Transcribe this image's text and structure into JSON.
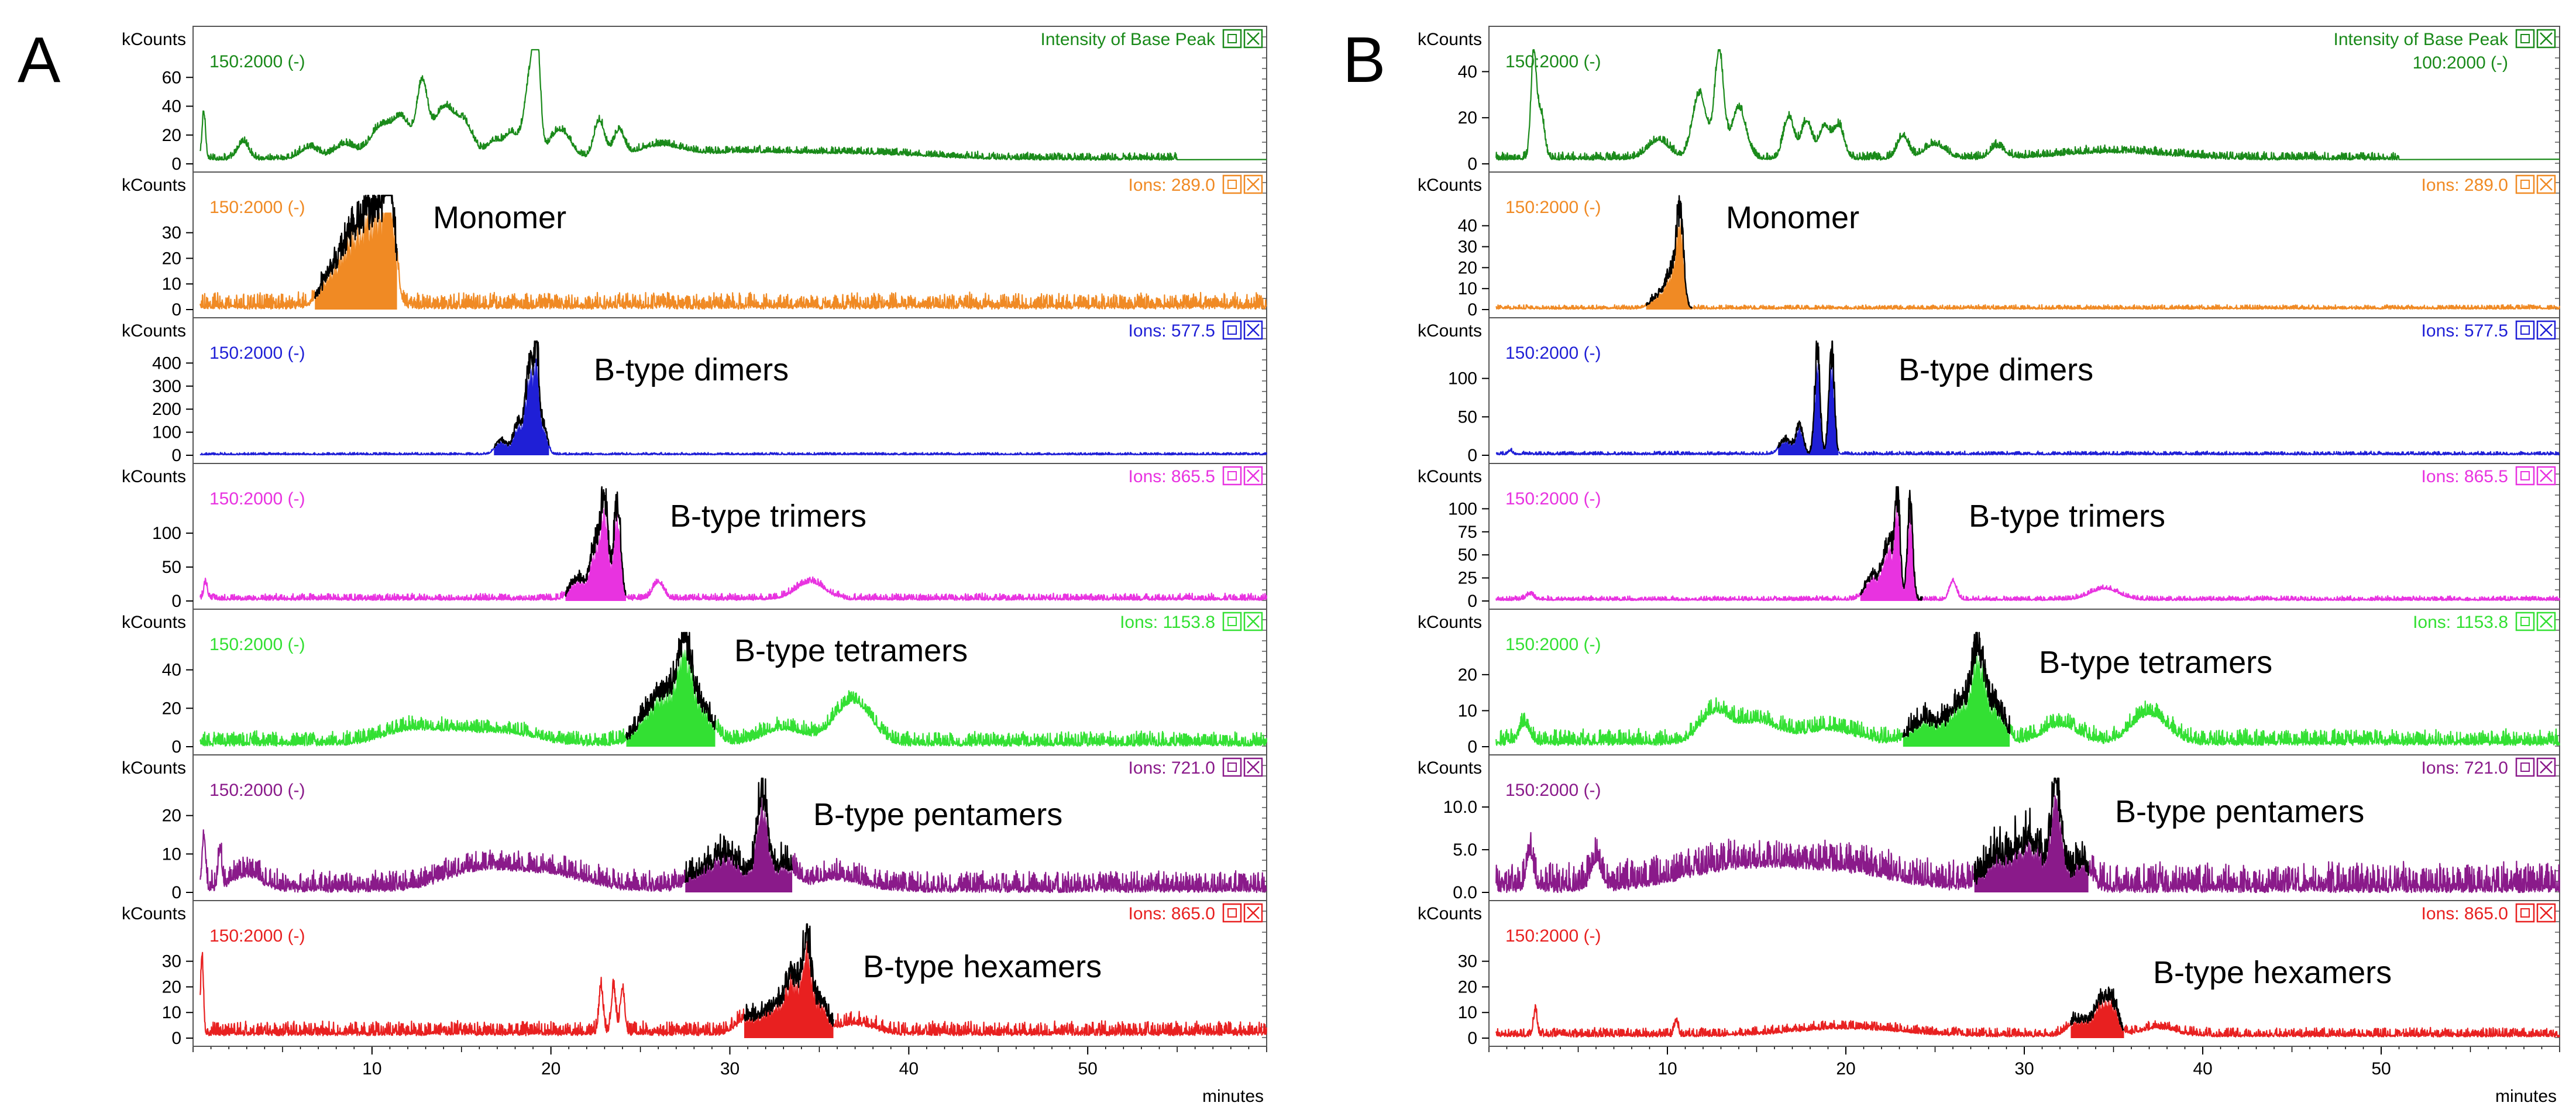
{
  "chart_data": [
    {
      "type": "line",
      "panel": "A",
      "x_unit_label": "minutes",
      "xlim": [
        0,
        60
      ],
      "x_ticks": [
        10,
        20,
        30,
        40,
        50
      ],
      "tracks": [
        {
          "y_unit": "kCounts",
          "range_label": "150:2000 (-)",
          "ion_label": "Intensity of Base Peak",
          "peak_name": "",
          "color": "#1a8a1a",
          "ylim": [
            0,
            80
          ],
          "y_ticks": [
            "0",
            "20",
            "40",
            "60"
          ],
          "peaks": [
            [
              0.6,
              32,
              0.1
            ],
            [
              2.8,
              12,
              0.3
            ],
            [
              6.5,
              8,
              0.5
            ],
            [
              8.5,
              10,
              0.6
            ],
            [
              10.5,
              22,
              0.6
            ],
            [
              11.7,
              26,
              0.5
            ],
            [
              12.8,
              48,
              0.3
            ],
            [
              14,
              35,
              0.6
            ],
            [
              15.2,
              22,
              0.5
            ],
            [
              16.8,
              12,
              0.4
            ],
            [
              17.8,
              18,
              0.4
            ],
            [
              18.8,
              52,
              0.3
            ],
            [
              19.2,
              72,
              0.2
            ],
            [
              20.5,
              20,
              0.6
            ],
            [
              22.7,
              26,
              0.3
            ],
            [
              23.8,
              18,
              0.3
            ],
            [
              26,
              8,
              1.2
            ],
            [
              30,
              4,
              3
            ],
            [
              37,
              4,
              4
            ]
          ],
          "baseline": 3,
          "noise": 2,
          "end": 55
        },
        {
          "y_unit": "kCounts",
          "range_label": "150:2000 (-)",
          "ion_label": "Ions: 289.0",
          "peak_name": "Monomer",
          "color": "#f08a24",
          "ylim": [
            0,
            45
          ],
          "y_ticks": [
            "0",
            "10",
            "20",
            "30"
          ],
          "peaks": [
            [
              7.5,
              6,
              0.5
            ],
            [
              8.6,
              14,
              0.8
            ],
            [
              9.5,
              22,
              0.8
            ],
            [
              10.3,
              20,
              0.5
            ],
            [
              11.0,
              40,
              0.3
            ]
          ],
          "baseline": 0.8,
          "noise": 2.5,
          "end": 60,
          "fill_range": [
            6.8,
            11.4
          ]
        },
        {
          "y_unit": "kCounts",
          "range_label": "150:2000 (-)",
          "ion_label": "Ions: 577.5",
          "peak_name": "B-type dimers",
          "color": "#1f1fd6",
          "ylim": [
            0,
            500
          ],
          "y_ticks": [
            "0",
            "100",
            "200",
            "300",
            "400"
          ],
          "peaks": [
            [
              17.2,
              60,
              0.3
            ],
            [
              18.2,
              140,
              0.3
            ],
            [
              18.8,
              360,
              0.2
            ],
            [
              19.2,
              420,
              0.15
            ],
            [
              19.6,
              120,
              0.2
            ]
          ],
          "baseline": 3,
          "noise": 4,
          "end": 60,
          "fill_range": [
            16.8,
            19.9
          ]
        },
        {
          "y_unit": "kCounts",
          "range_label": "150:2000 (-)",
          "ion_label": "Ions: 865.5",
          "peak_name": "B-type trimers",
          "color": "#e833e0",
          "ylim": [
            0,
            170
          ],
          "y_ticks": [
            "0",
            "50",
            "100"
          ],
          "peaks": [
            [
              0.7,
              25,
              0.1
            ],
            [
              21.5,
              30,
              0.4
            ],
            [
              22.5,
              80,
              0.3
            ],
            [
              23,
              140,
              0.2
            ],
            [
              23.7,
              140,
              0.2
            ],
            [
              26,
              25,
              0.3
            ],
            [
              34.5,
              25,
              0.8
            ]
          ],
          "baseline": 2,
          "noise": 4,
          "end": 60,
          "fill_range": [
            20.8,
            24.2
          ]
        },
        {
          "y_unit": "kCounts",
          "range_label": "150:2000 (-)",
          "ion_label": "Ions: 1153.8",
          "peak_name": "B-type tetramers",
          "color": "#33e033",
          "ylim": [
            0,
            60
          ],
          "y_ticks": [
            "0",
            "20",
            "40"
          ],
          "peaks": [
            [
              12,
              7,
              1.5
            ],
            [
              15,
              6,
              1.5
            ],
            [
              18,
              5,
              1.5
            ],
            [
              25.5,
              14,
              0.7
            ],
            [
              26.5,
              22,
              0.6
            ],
            [
              27.5,
              45,
              0.4
            ],
            [
              28.5,
              18,
              0.6
            ],
            [
              33,
              8,
              1.2
            ],
            [
              36.5,
              16,
              0.9
            ],
            [
              37.5,
              10,
              0.8
            ]
          ],
          "baseline": 1,
          "noise": 3,
          "end": 60,
          "fill_range": [
            24.2,
            29.2
          ]
        },
        {
          "y_unit": "kCounts",
          "range_label": "150:2000 (-)",
          "ion_label": "Ions: 721.0",
          "peak_name": "B-type pentamers",
          "color": "#8a1a8a",
          "ylim": [
            0,
            30
          ],
          "y_ticks": [
            "0",
            "10",
            "20"
          ],
          "peaks": [
            [
              0.6,
              14,
              0.1
            ],
            [
              1.5,
              10,
              0.1
            ],
            [
              3,
              4,
              0.8
            ],
            [
              16,
              5,
              2
            ],
            [
              20,
              4,
              2
            ],
            [
              28.5,
              4,
              0.8
            ],
            [
              30,
              8,
              0.8
            ],
            [
              31.8,
              24,
              0.3
            ],
            [
              33,
              6,
              0.6
            ],
            [
              36,
              3,
              1.5
            ]
          ],
          "baseline": 0.5,
          "noise": 2.2,
          "end": 60,
          "fill_range": [
            27.5,
            33.5
          ]
        },
        {
          "y_unit": "kCounts",
          "range_label": "150:2000 (-)",
          "ion_label": "Ions: 865.0",
          "peak_name": "B-type hexamers",
          "color": "#e82020",
          "ylim": [
            0,
            45
          ],
          "y_ticks": [
            "0",
            "10",
            "20",
            "30"
          ],
          "peaks": [
            [
              0.5,
              30,
              0.08
            ],
            [
              22.8,
              18,
              0.12
            ],
            [
              23.5,
              18,
              0.12
            ],
            [
              24,
              18,
              0.12
            ],
            [
              31,
              6,
              0.6
            ],
            [
              32.5,
              10,
              0.6
            ],
            [
              33.5,
              20,
              0.4
            ],
            [
              34.3,
              34,
              0.25
            ],
            [
              35,
              12,
              0.4
            ],
            [
              37,
              4,
              1
            ]
          ],
          "baseline": 1.5,
          "noise": 2.2,
          "end": 60,
          "fill_range": [
            30.8,
            35.8
          ]
        }
      ]
    },
    {
      "type": "line",
      "panel": "B",
      "x_unit_label": "minutes",
      "xlim": [
        0,
        60
      ],
      "x_ticks": [
        10,
        20,
        30,
        40,
        50
      ],
      "tracks": [
        {
          "y_unit": "kCounts",
          "range_label": "150:2000 (-)",
          "ion_label": "Intensity of Base Peak",
          "ion_label_2": "100:2000 (-)",
          "peak_name": "",
          "color": "#1a8a1a",
          "ylim": [
            0,
            50
          ],
          "y_ticks": [
            "0",
            "20",
            "40"
          ],
          "peaks": [
            [
              2.5,
              44,
              0.15
            ],
            [
              2.9,
              20,
              0.2
            ],
            [
              9.5,
              8,
              0.6
            ],
            [
              11.8,
              28,
              0.4
            ],
            [
              12.9,
              46,
              0.25
            ],
            [
              14,
              22,
              0.4
            ],
            [
              16.8,
              18,
              0.3
            ],
            [
              17.8,
              16,
              0.3
            ],
            [
              18.8,
              14,
              0.3
            ],
            [
              19.6,
              14,
              0.3
            ],
            [
              23.2,
              10,
              0.3
            ],
            [
              25,
              6,
              0.6
            ],
            [
              28.5,
              5,
              0.4
            ],
            [
              35,
              3,
              3
            ]
          ],
          "baseline": 2,
          "noise": 1.4,
          "end": 51
        },
        {
          "y_unit": "kCounts",
          "range_label": "150:2000 (-)",
          "ion_label": "Ions: 289.0",
          "peak_name": "Monomer",
          "color": "#f08a24",
          "ylim": [
            0,
            55
          ],
          "y_ticks": [
            "0",
            "10",
            "20",
            "30",
            "40"
          ],
          "peaks": [
            [
              9.5,
              6,
              0.4
            ],
            [
              10.2,
              16,
              0.3
            ],
            [
              10.7,
              44,
              0.2
            ]
          ],
          "baseline": 0.4,
          "noise": 0.8,
          "end": 60,
          "fill_range": [
            8.8,
            11.4
          ]
        },
        {
          "y_unit": "kCounts",
          "range_label": "150:2000 (-)",
          "ion_label": "Ions: 577.5",
          "peak_name": "B-type dimers",
          "color": "#1f1fd6",
          "ylim": [
            0,
            150
          ],
          "y_ticks": [
            "0",
            "50",
            "100"
          ],
          "peaks": [
            [
              1.2,
              5,
              0.1
            ],
            [
              16.6,
              20,
              0.3
            ],
            [
              17.4,
              38,
              0.2
            ],
            [
              18.4,
              135,
              0.15
            ],
            [
              19.2,
              135,
              0.15
            ]
          ],
          "baseline": 1,
          "noise": 1.8,
          "end": 60,
          "fill_range": [
            16.2,
            19.6
          ]
        },
        {
          "y_unit": "kCounts",
          "range_label": "150:2000 (-)",
          "ion_label": "Ions: 865.5",
          "peak_name": "B-type trimers",
          "color": "#e833e0",
          "ylim": [
            0,
            125
          ],
          "y_ticks": [
            "0",
            "25",
            "50",
            "75",
            "100"
          ],
          "peaks": [
            [
              2.3,
              6,
              0.2
            ],
            [
              21.5,
              25,
              0.4
            ],
            [
              22.4,
              60,
              0.3
            ],
            [
              22.9,
              100,
              0.15
            ],
            [
              23.6,
              100,
              0.15
            ],
            [
              26,
              20,
              0.2
            ],
            [
              34.5,
              12,
              0.8
            ]
          ],
          "baseline": 1,
          "noise": 2,
          "end": 60,
          "fill_range": [
            20.8,
            24.3
          ]
        },
        {
          "y_unit": "kCounts",
          "range_label": "150:2000 (-)",
          "ion_label": "Ions: 1153.8",
          "peak_name": "B-type tetramers",
          "color": "#33e033",
          "ylim": [
            0,
            32
          ],
          "y_ticks": [
            "0",
            "10",
            "20"
          ],
          "peaks": [
            [
              2,
              5,
              0.3
            ],
            [
              12.6,
              8,
              0.8
            ],
            [
              15,
              6,
              1.2
            ],
            [
              19,
              4,
              1.5
            ],
            [
              24.5,
              6,
              0.8
            ],
            [
              26.4,
              10,
              0.6
            ],
            [
              27.4,
              24,
              0.35
            ],
            [
              28.4,
              10,
              0.5
            ],
            [
              32,
              5,
              1
            ],
            [
              37,
              8,
              1
            ]
          ],
          "baseline": 0.8,
          "noise": 1.8,
          "end": 60,
          "fill_range": [
            23.2,
            29.2
          ]
        },
        {
          "y_unit": "kCounts",
          "range_label": "150:2000 (-)",
          "ion_label": "Ions: 721.0",
          "peak_name": "B-type pentamers",
          "color": "#8a1a8a",
          "ylim": [
            0,
            13.5
          ],
          "y_ticks": [
            "0.0",
            "5.0",
            "10.0"
          ],
          "peaks": [
            [
              2.3,
              4,
              0.2
            ],
            [
              6,
              3,
              0.3
            ],
            [
              14,
              2.5,
              3
            ],
            [
              20,
              2,
              3
            ],
            [
              28.5,
              3,
              0.8
            ],
            [
              30.3,
              5,
              0.8
            ],
            [
              31.8,
              11,
              0.3
            ],
            [
              33.2,
              3,
              0.5
            ]
          ],
          "baseline": 0.3,
          "noise": 1.4,
          "end": 60,
          "fill_range": [
            27.2,
            33.6
          ]
        },
        {
          "y_unit": "kCounts",
          "range_label": "150:2000 (-)",
          "ion_label": "Ions: 865.0",
          "peak_name": "B-type hexamers",
          "color": "#e82020",
          "ylim": [
            0,
            45
          ],
          "y_ticks": [
            "0",
            "10",
            "20",
            "30"
          ],
          "peaks": [
            [
              2.6,
              10,
              0.1
            ],
            [
              10.5,
              6,
              0.1
            ],
            [
              20,
              3,
              3
            ],
            [
              33,
              6,
              0.5
            ],
            [
              34.3,
              14,
              0.4
            ],
            [
              35,
              10,
              0.3
            ],
            [
              37.5,
              3,
              1
            ]
          ],
          "baseline": 0.8,
          "noise": 1.4,
          "end": 60,
          "fill_range": [
            32.6,
            35.6
          ]
        }
      ]
    }
  ],
  "labels": {
    "panel_a": "A",
    "panel_b": "B"
  },
  "colors": {
    "axis": "#000000",
    "trace_fill_black": "#000000"
  }
}
